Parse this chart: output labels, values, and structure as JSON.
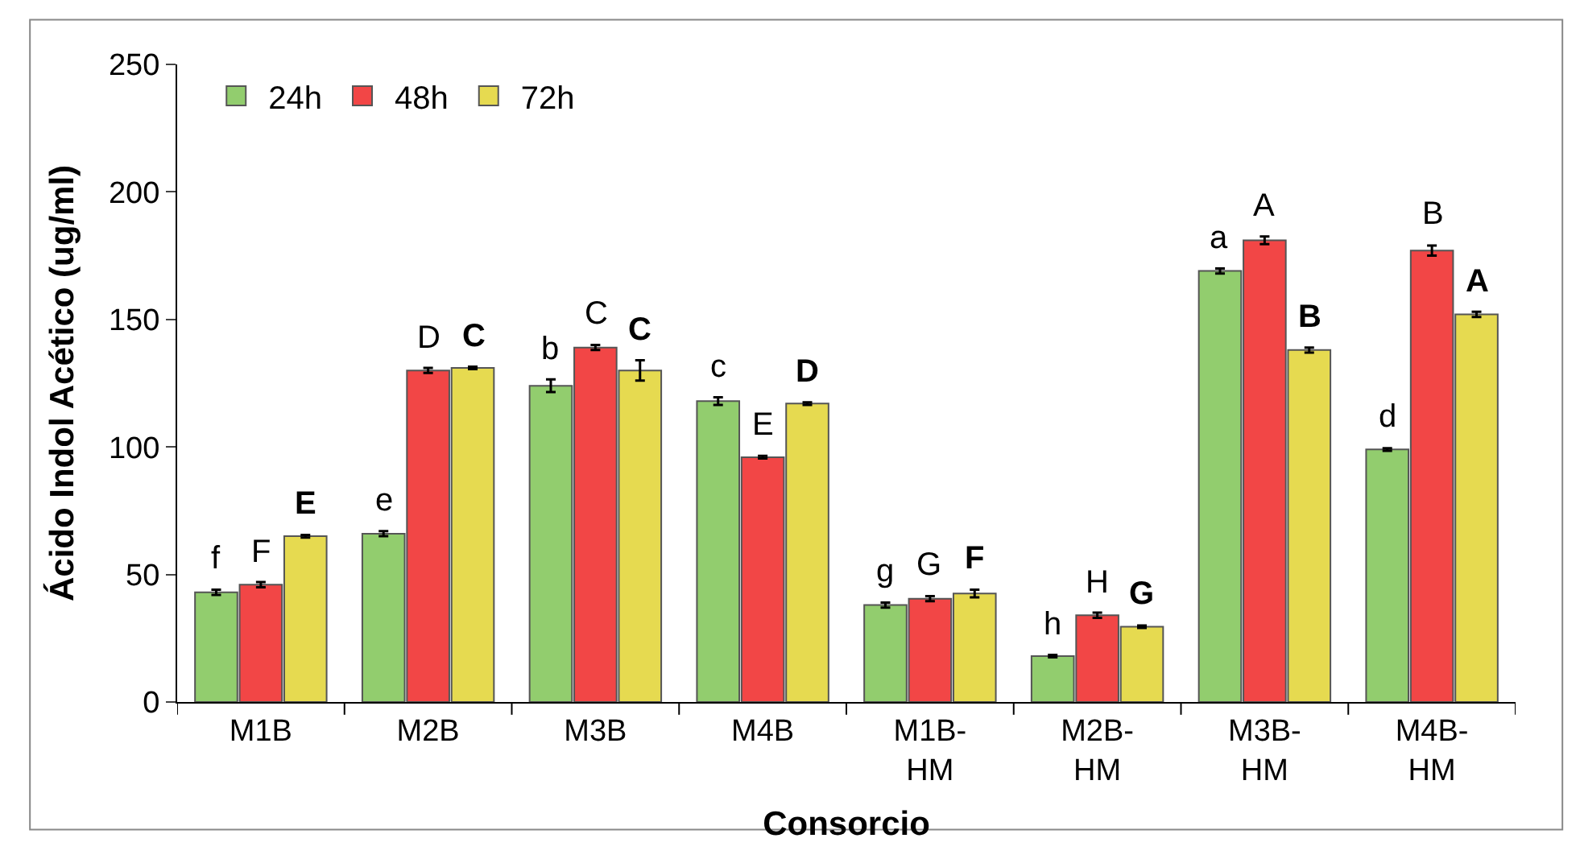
{
  "chart_data": {
    "type": "bar",
    "xlabel": "Consorcio",
    "ylabel": "Ácido Indol Acético (ug/ml)",
    "categories": [
      "M1B",
      "M2B",
      "M3B",
      "M4B",
      "M1B-HM",
      "M2B-HM",
      "M3B-HM",
      "M4B-HM"
    ],
    "series": [
      {
        "name": "24h",
        "color": "#92cd6e",
        "values": [
          43,
          66,
          124,
          118,
          38,
          18,
          169,
          99
        ],
        "errors": [
          1,
          1,
          2.5,
          1.5,
          1,
          0.5,
          1,
          0.5
        ]
      },
      {
        "name": "48h",
        "color": "#f24646",
        "values": [
          46,
          130,
          139,
          96,
          40.5,
          34,
          181,
          177
        ],
        "errors": [
          1,
          1,
          1,
          0.5,
          1,
          1,
          1.5,
          2
        ]
      },
      {
        "name": "72h",
        "color": "#e6da50",
        "values": [
          65,
          131,
          130,
          117,
          42.5,
          29.5,
          138,
          152
        ],
        "errors": [
          0.5,
          0.5,
          4,
          0.5,
          1.5,
          0.5,
          1,
          1
        ]
      }
    ],
    "annotations": [
      "f",
      "F",
      "E",
      "e",
      "D",
      "C",
      "b",
      "C",
      "C",
      "c",
      "E",
      "D",
      "g",
      "G",
      "F",
      "h",
      "H",
      "G",
      "a",
      "A",
      "B",
      "d",
      "B",
      "A"
    ],
    "ylim": [
      0,
      250
    ],
    "yticks": [
      0,
      50,
      100,
      150,
      200,
      250
    ],
    "legend": "top left"
  }
}
